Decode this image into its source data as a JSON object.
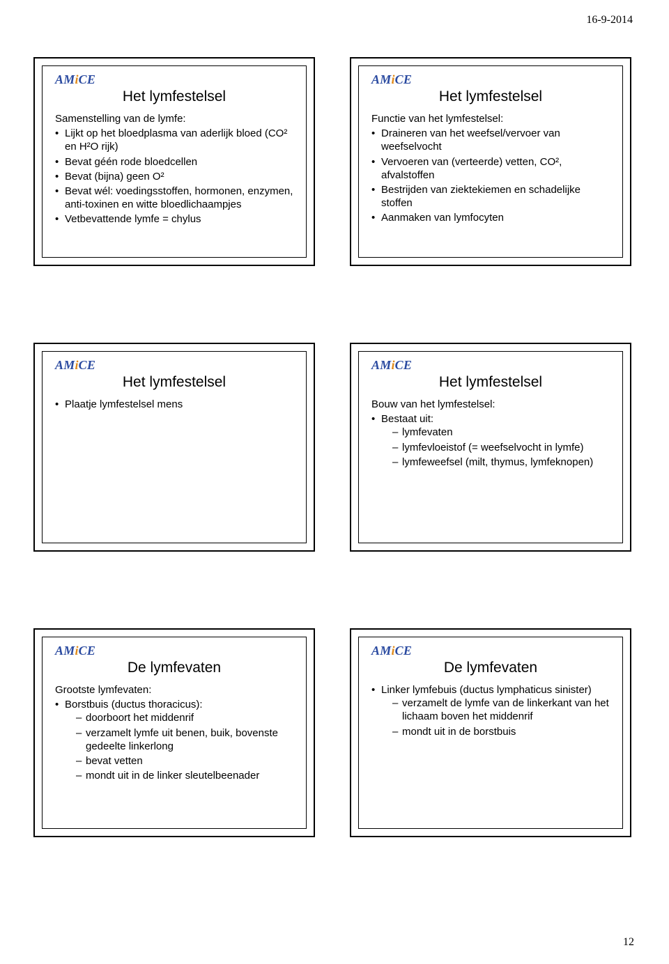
{
  "page": {
    "date": "16-9-2014",
    "number": "12"
  },
  "slide1": {
    "title": "Het lymfestelsel",
    "lead": "Samenstelling van de lymfe:",
    "b0": "Lijkt op het bloedplasma van aderlijk bloed (CO² en H²O rijk)",
    "b1": "Bevat géén rode bloedcellen",
    "b2": "Bevat (bijna) geen O²",
    "b3": "Bevat wél: voedingsstoffen, hormonen, enzymen, anti-toxinen en witte bloedlichaampjes",
    "b4": "Vetbevattende lymfe = chylus"
  },
  "slide2": {
    "title": "Het lymfestelsel",
    "lead": "Functie van het lymfestelsel:",
    "b0": "Draineren van het weefsel/vervoer van weefselvocht",
    "b1": "Vervoeren van (verteerde) vetten, CO², afvalstoffen",
    "b2": "Bestrijden van ziektekiemen en schadelijke stoffen",
    "b3": "Aanmaken van lymfocyten"
  },
  "slide3": {
    "title": "Het lymfestelsel",
    "b0": "Plaatje lymfestelsel mens"
  },
  "slide4": {
    "title": "Het lymfestelsel",
    "lead": "Bouw van het lymfestelsel:",
    "b0": "Bestaat uit:",
    "d0": "lymfevaten",
    "d1": "lymfevloeistof (= weefselvocht in lymfe)",
    "d2": "lymfeweefsel (milt, thymus, lymfeknopen)"
  },
  "slide5": {
    "title": "De lymfevaten",
    "lead": "Grootste lymfevaten:",
    "b0": "Borstbuis (ductus thoracicus):",
    "d0": "doorboort het middenrif",
    "d1": "verzamelt lymfe uit benen, buik, bovenste gedeelte linkerlong",
    "d2": "bevat vetten",
    "d3": "mondt uit in de  linker sleutelbeenader"
  },
  "slide6": {
    "title": "De lymfevaten",
    "b0": "Linker lymfebuis (ductus lymphaticus sinister)",
    "d0": "verzamelt de lymfe van de linkerkant van het lichaam boven het middenrif",
    "d1": "mondt uit in de borstbuis"
  }
}
